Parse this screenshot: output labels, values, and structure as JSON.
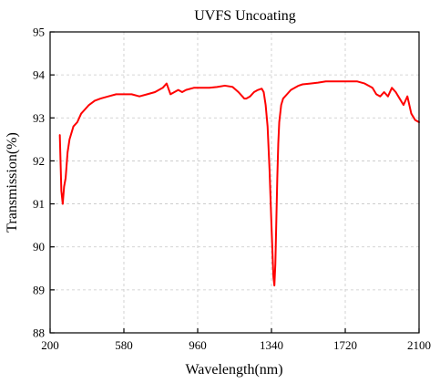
{
  "chart_data": {
    "type": "line",
    "title": "UVFS Uncoating",
    "xlabel": "Wavelength(nm)",
    "ylabel": "Transmission(%)",
    "xlim": [
      200,
      2100
    ],
    "ylim": [
      88,
      95
    ],
    "x_ticks": [
      200,
      580,
      960,
      1340,
      1720,
      2100
    ],
    "y_ticks": [
      88,
      89,
      90,
      91,
      92,
      93,
      94,
      95
    ],
    "grid": true,
    "series": [
      {
        "color": "#ff0000",
        "x": [
          250,
          258,
          265,
          272,
          280,
          290,
          300,
          320,
          340,
          360,
          380,
          400,
          430,
          460,
          500,
          540,
          580,
          620,
          660,
          700,
          740,
          780,
          800,
          820,
          840,
          860,
          880,
          900,
          940,
          980,
          1020,
          1060,
          1100,
          1140,
          1170,
          1190,
          1200,
          1210,
          1230,
          1250,
          1270,
          1290,
          1300,
          1310,
          1320,
          1330,
          1340,
          1350,
          1355,
          1360,
          1365,
          1370,
          1375,
          1380,
          1390,
          1400,
          1420,
          1440,
          1460,
          1480,
          1500,
          1540,
          1580,
          1620,
          1660,
          1700,
          1740,
          1780,
          1820,
          1860,
          1880,
          1900,
          1920,
          1940,
          1960,
          1980,
          2000,
          2020,
          2040,
          2060,
          2080,
          2100
        ],
        "y": [
          92.6,
          91.3,
          91.0,
          91.4,
          91.6,
          92.2,
          92.5,
          92.8,
          92.9,
          93.1,
          93.2,
          93.3,
          93.4,
          93.45,
          93.5,
          93.55,
          93.55,
          93.55,
          93.5,
          93.55,
          93.6,
          93.7,
          93.8,
          93.55,
          93.6,
          93.65,
          93.6,
          93.65,
          93.7,
          93.7,
          93.7,
          93.72,
          93.75,
          93.72,
          93.6,
          93.5,
          93.45,
          93.45,
          93.5,
          93.6,
          93.65,
          93.68,
          93.6,
          93.3,
          92.8,
          91.8,
          90.5,
          89.3,
          89.1,
          89.6,
          90.6,
          91.6,
          92.4,
          92.9,
          93.3,
          93.45,
          93.55,
          93.65,
          93.7,
          93.75,
          93.78,
          93.8,
          93.82,
          93.85,
          93.85,
          93.85,
          93.85,
          93.85,
          93.8,
          93.7,
          93.55,
          93.5,
          93.6,
          93.5,
          93.7,
          93.6,
          93.45,
          93.3,
          93.5,
          93.1,
          92.95,
          92.9
        ]
      }
    ]
  }
}
